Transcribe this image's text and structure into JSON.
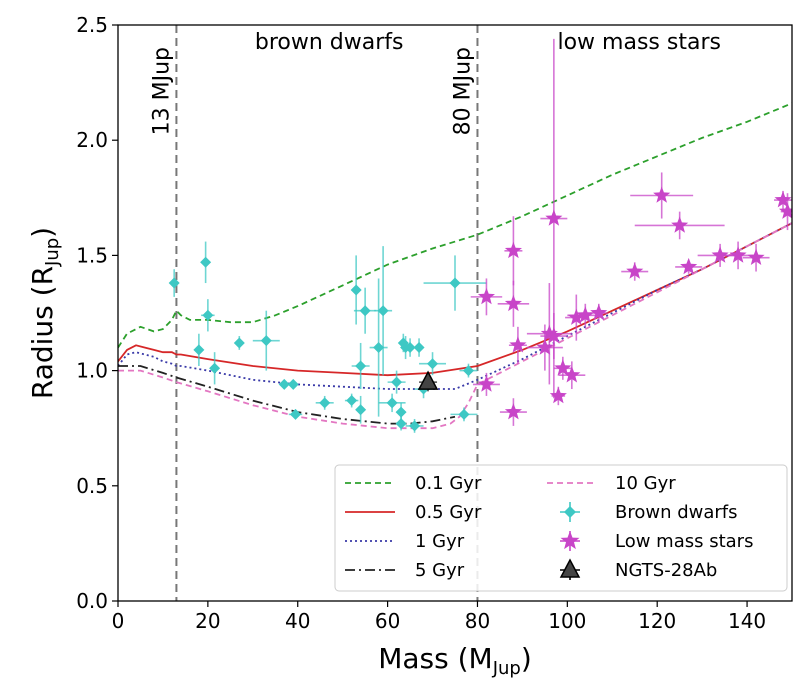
{
  "chart_data": {
    "type": "scatter",
    "xlabel": "Mass (M",
    "xlabel_sub": "Jup",
    "xlabel_end": ")",
    "ylabel": "Radius (R",
    "ylabel_sub": "Jup",
    "ylabel_end": ")",
    "xlim": [
      0,
      150
    ],
    "ylim": [
      0,
      2.5
    ],
    "xticks": [
      0,
      20,
      40,
      60,
      80,
      100,
      120,
      140
    ],
    "yticks": [
      0.0,
      0.5,
      1.0,
      1.5,
      2.0,
      2.5
    ],
    "xtick_labels": [
      "0",
      "20",
      "40",
      "60",
      "80",
      "100",
      "120",
      "140"
    ],
    "ytick_labels": [
      "0.0",
      "0.5",
      "1.0",
      "1.5",
      "2.0",
      "2.5"
    ],
    "grid": false,
    "legend_position": "lower-right",
    "vlines": [
      {
        "x": 13,
        "label": "13 MJup"
      },
      {
        "x": 80,
        "label": "80 MJup"
      }
    ],
    "region_labels": [
      {
        "text": "brown dwarfs",
        "x": 47,
        "y": 2.43
      },
      {
        "text": "low mass stars",
        "x": 116,
        "y": 2.43
      }
    ],
    "isochrones": [
      {
        "name": "0.1 Gyr",
        "color": "#2ca02c",
        "dash": "6,4",
        "x": [
          0,
          2,
          5,
          8,
          10,
          12,
          13,
          14,
          16,
          20,
          25,
          30,
          35,
          40,
          50,
          60,
          70,
          80,
          90,
          100,
          110,
          120,
          130,
          140,
          150
        ],
        "y": [
          1.1,
          1.16,
          1.19,
          1.17,
          1.18,
          1.22,
          1.26,
          1.24,
          1.22,
          1.22,
          1.21,
          1.21,
          1.24,
          1.28,
          1.37,
          1.46,
          1.53,
          1.59,
          1.67,
          1.76,
          1.85,
          1.93,
          2.01,
          2.08,
          2.16
        ]
      },
      {
        "name": "0.5 Gyr",
        "color": "#d62728",
        "dash": "",
        "x": [
          0,
          2,
          4,
          6,
          8,
          10,
          12,
          13,
          14,
          20,
          30,
          40,
          50,
          60,
          70,
          80,
          90,
          100,
          110,
          120,
          130,
          140,
          150
        ],
        "y": [
          1.04,
          1.09,
          1.11,
          1.1,
          1.09,
          1.08,
          1.08,
          1.07,
          1.07,
          1.05,
          1.02,
          1.0,
          0.99,
          0.98,
          0.99,
          1.02,
          1.09,
          1.17,
          1.26,
          1.35,
          1.44,
          1.54,
          1.64
        ]
      },
      {
        "name": "1 Gyr",
        "color": "#3a3aa8",
        "dash": "2,3",
        "x": [
          0,
          2,
          4,
          6,
          8,
          10,
          12,
          13,
          14,
          20,
          30,
          40,
          50,
          60,
          70,
          75,
          80,
          90,
          100,
          110,
          120,
          130,
          140,
          150
        ],
        "y": [
          1.02,
          1.07,
          1.08,
          1.07,
          1.06,
          1.04,
          1.03,
          1.02,
          1.02,
          1.0,
          0.96,
          0.94,
          0.93,
          0.92,
          0.92,
          0.92,
          0.96,
          1.05,
          1.15,
          1.25,
          1.35,
          1.44,
          1.54,
          1.64
        ]
      },
      {
        "name": "5 Gyr",
        "color": "#222222",
        "dash": "10,4,2,4",
        "x": [
          0,
          5,
          10,
          13,
          20,
          30,
          40,
          50,
          60,
          65,
          70,
          75
        ],
        "y": [
          1.02,
          1.02,
          0.99,
          0.97,
          0.93,
          0.87,
          0.82,
          0.79,
          0.77,
          0.77,
          0.78,
          0.8
        ]
      },
      {
        "name": "10 Gyr",
        "color": "#e377c2",
        "dash": "6,4",
        "x": [
          0,
          5,
          10,
          13,
          20,
          30,
          40,
          50,
          60,
          65,
          70,
          74,
          76,
          78,
          80,
          90,
          100,
          110,
          120,
          130,
          140,
          150
        ],
        "y": [
          1.0,
          1.0,
          0.97,
          0.95,
          0.91,
          0.85,
          0.8,
          0.77,
          0.75,
          0.75,
          0.75,
          0.77,
          0.8,
          0.86,
          0.94,
          1.04,
          1.14,
          1.24,
          1.34,
          1.44,
          1.54,
          1.64
        ]
      }
    ],
    "brown_dwarfs": {
      "name": "Brown dwarfs",
      "color": "#3ec8c4",
      "points": [
        {
          "x": 12.5,
          "y": 1.38,
          "xerr": 1.0,
          "yerr": 0.06
        },
        {
          "x": 18,
          "y": 1.09,
          "xerr": 1.0,
          "yerr": 0.07
        },
        {
          "x": 19.5,
          "y": 1.47,
          "xerr": 1.0,
          "yerr": 0.09
        },
        {
          "x": 20,
          "y": 1.24,
          "xerr": 1.5,
          "yerr": 0.07
        },
        {
          "x": 21.5,
          "y": 1.01,
          "xerr": 1.0,
          "yerr": 0.07
        },
        {
          "x": 27,
          "y": 1.12,
          "xerr": 1.0,
          "yerr": 0.03
        },
        {
          "x": 33,
          "y": 1.13,
          "xerr": 3.0,
          "yerr": 0.13
        },
        {
          "x": 37,
          "y": 0.94,
          "xerr": 1.0,
          "yerr": 0.02
        },
        {
          "x": 39,
          "y": 0.94,
          "xerr": 1.0,
          "yerr": 0.02
        },
        {
          "x": 39.5,
          "y": 0.81,
          "xerr": 1.5,
          "yerr": 0.02
        },
        {
          "x": 46,
          "y": 0.86,
          "xerr": 2.0,
          "yerr": 0.03
        },
        {
          "x": 52,
          "y": 0.87,
          "xerr": 1.5,
          "yerr": 0.03
        },
        {
          "x": 53,
          "y": 1.35,
          "xerr": 1.0,
          "yerr": 0.15
        },
        {
          "x": 54,
          "y": 1.02,
          "xerr": 2.0,
          "yerr": 0.1
        },
        {
          "x": 54,
          "y": 0.83,
          "xerr": 1.0,
          "yerr": 0.06
        },
        {
          "x": 55,
          "y": 1.26,
          "xerr": 2.5,
          "yerr": 0.1
        },
        {
          "x": 58,
          "y": 1.1,
          "xerr": 2.0,
          "yerr": 0.3
        },
        {
          "x": 59,
          "y": 1.26,
          "xerr": 2.0,
          "yerr": 0.28
        },
        {
          "x": 61,
          "y": 0.86,
          "xerr": 3.0,
          "yerr": 0.04
        },
        {
          "x": 62,
          "y": 0.95,
          "xerr": 2.0,
          "yerr": 0.05
        },
        {
          "x": 63,
          "y": 0.82,
          "xerr": 1.0,
          "yerr": 0.04
        },
        {
          "x": 63,
          "y": 0.77,
          "xerr": 1.0,
          "yerr": 0.03
        },
        {
          "x": 63.5,
          "y": 1.12,
          "xerr": 1.0,
          "yerr": 0.04
        },
        {
          "x": 64,
          "y": 1.1,
          "xerr": 1.0,
          "yerr": 0.05
        },
        {
          "x": 65,
          "y": 1.1,
          "xerr": 1.5,
          "yerr": 0.04
        },
        {
          "x": 66,
          "y": 0.76,
          "xerr": 2.0,
          "yerr": 0.03
        },
        {
          "x": 67,
          "y": 1.1,
          "xerr": 1.0,
          "yerr": 0.04
        },
        {
          "x": 68,
          "y": 0.92,
          "xerr": 2.0,
          "yerr": 0.04
        },
        {
          "x": 70,
          "y": 1.03,
          "xerr": 3.0,
          "yerr": 0.05
        },
        {
          "x": 75,
          "y": 1.38,
          "xerr": 7.0,
          "yerr": 0.12
        },
        {
          "x": 77,
          "y": 0.81,
          "xerr": 3.0,
          "yerr": 0.03
        },
        {
          "x": 78,
          "y": 1.0,
          "xerr": 2.0,
          "yerr": 0.03
        }
      ]
    },
    "low_mass_stars": {
      "name": "Low mass stars",
      "color": "#c845c8",
      "points": [
        {
          "x": 82,
          "y": 1.32,
          "xerr": 3.5,
          "yerr": 0.08
        },
        {
          "x": 82,
          "y": 0.94,
          "xerr": 3.0,
          "yerr": 0.05
        },
        {
          "x": 88,
          "y": 1.52,
          "xerr": 2.0,
          "yerr": 0.15
        },
        {
          "x": 88,
          "y": 1.29,
          "xerr": 3.5,
          "yerr": 0.1
        },
        {
          "x": 88,
          "y": 0.82,
          "xerr": 3.0,
          "yerr": 0.06
        },
        {
          "x": 89,
          "y": 1.11,
          "xerr": 2.0,
          "yerr": 0.08
        },
        {
          "x": 95,
          "y": 1.1,
          "xerr": 4.0,
          "yerr": 0.1
        },
        {
          "x": 96,
          "y": 1.16,
          "xerr": 5.0,
          "yerr": 0.22
        },
        {
          "x": 97,
          "y": 1.15,
          "xerr": 3.0,
          "yerr": 0.1
        },
        {
          "x": 97,
          "y": 1.66,
          "xerr": 3.0,
          "yerr": 0.78
        },
        {
          "x": 98,
          "y": 0.89,
          "xerr": 1.5,
          "yerr": 0.04
        },
        {
          "x": 99,
          "y": 1.01,
          "xerr": 2.0,
          "yerr": 0.05
        },
        {
          "x": 101,
          "y": 0.98,
          "xerr": 3.0,
          "yerr": 0.06
        },
        {
          "x": 102,
          "y": 1.23,
          "xerr": 2.5,
          "yerr": 0.1
        },
        {
          "x": 104,
          "y": 1.24,
          "xerr": 4.0,
          "yerr": 0.05
        },
        {
          "x": 107,
          "y": 1.25,
          "xerr": 2.0,
          "yerr": 0.04
        },
        {
          "x": 115,
          "y": 1.43,
          "xerr": 3.0,
          "yerr": 0.04
        },
        {
          "x": 121,
          "y": 1.76,
          "xerr": 7.0,
          "yerr": 0.1
        },
        {
          "x": 125,
          "y": 1.63,
          "xerr": 10.0,
          "yerr": 0.06
        },
        {
          "x": 127,
          "y": 1.45,
          "xerr": 3.0,
          "yerr": 0.03
        },
        {
          "x": 134,
          "y": 1.5,
          "xerr": 5.0,
          "yerr": 0.05
        },
        {
          "x": 138,
          "y": 1.5,
          "xerr": 4.0,
          "yerr": 0.06
        },
        {
          "x": 142,
          "y": 1.49,
          "xerr": 3.0,
          "yerr": 0.06
        },
        {
          "x": 148,
          "y": 1.74,
          "xerr": 2.0,
          "yerr": 0.04
        },
        {
          "x": 149,
          "y": 1.69,
          "xerr": 1.5,
          "yerr": 0.08
        }
      ]
    },
    "target": {
      "name": "NGTS-28Ab",
      "color": "#111111",
      "x": 69,
      "y": 0.95,
      "xerr": 2.0,
      "yerr": 0.04
    },
    "legend": {
      "left": [
        "0.1 Gyr",
        "0.5 Gyr",
        "1 Gyr",
        "5 Gyr"
      ],
      "right": [
        "10 Gyr",
        "Brown dwarfs",
        "Low mass stars",
        "NGTS-28Ab"
      ]
    }
  }
}
